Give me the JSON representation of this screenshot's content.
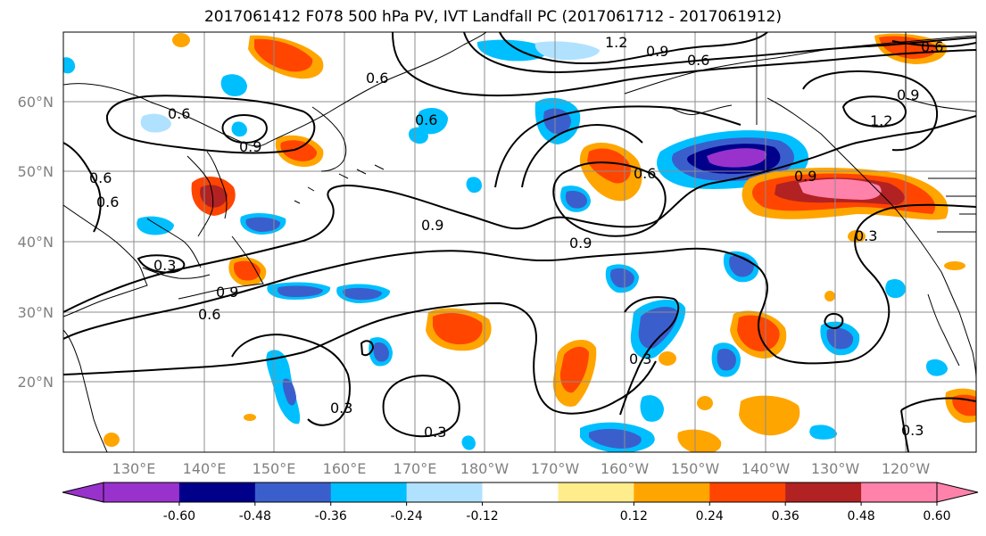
{
  "title": "2017061412 F078 500 hPa PV, IVT Landfall PC (2017061712 - 2017061912)",
  "lat_labels": [
    "60°N",
    "50°N",
    "40°N",
    "30°N",
    "20°N"
  ],
  "lon_labels": [
    "130°E",
    "140°E",
    "150°E",
    "160°E",
    "170°E",
    "180°W",
    "170°W",
    "160°W",
    "150°W",
    "140°W",
    "130°W",
    "120°W"
  ],
  "contour_labels": [
    "1.2",
    "0.9",
    "0.6",
    "0.6",
    "0.6",
    "0.9",
    "0.6",
    "0.9",
    "1.2",
    "0.6",
    "0.9",
    "0.6",
    "0.9",
    "0.6",
    "0.9",
    "0.3",
    "0.3",
    "0.9",
    "0.6",
    "0.3",
    "0.3",
    "0.3",
    "0.3",
    "0.6"
  ],
  "colorbar": {
    "tick_labels": [
      "-0.60",
      "-0.48",
      "-0.36",
      "-0.24",
      "-0.12",
      "0.12",
      "0.24",
      "0.36",
      "0.48",
      "0.60"
    ],
    "colors": [
      "#9932cc",
      "#00008b",
      "#3a5fcd",
      "#00bfff",
      "#b0e2ff",
      "#ffffff",
      "#ffec8b",
      "#ffa500",
      "#ff4500",
      "#b22222",
      "#ff82ab"
    ]
  }
}
